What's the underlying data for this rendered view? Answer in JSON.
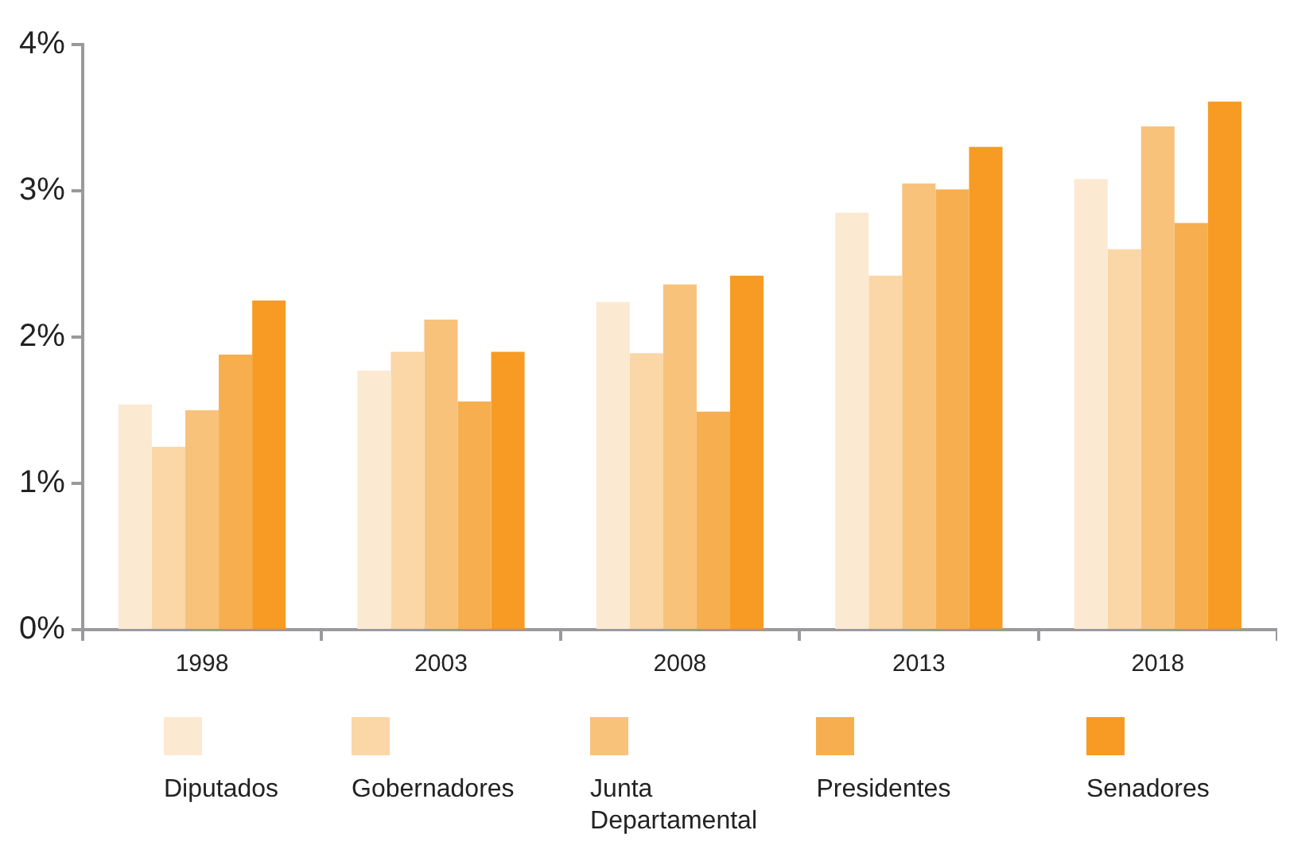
{
  "chart_data": {
    "type": "bar",
    "categories": [
      "1998",
      "2003",
      "2008",
      "2013",
      "2018"
    ],
    "series": [
      {
        "name": "Diputados",
        "color": "#fce9d2",
        "values": [
          1.54,
          1.77,
          2.24,
          2.85,
          3.08
        ]
      },
      {
        "name": "Gobernadores",
        "color": "#fbd6a6",
        "values": [
          1.25,
          1.9,
          1.89,
          2.42,
          2.6
        ]
      },
      {
        "name": "Junta Departamental",
        "color": "#f8c27b",
        "values": [
          1.5,
          2.12,
          2.36,
          3.05,
          3.44
        ]
      },
      {
        "name": "Presidentes",
        "color": "#f7ae4f",
        "values": [
          1.88,
          1.56,
          1.49,
          3.01,
          2.78
        ]
      },
      {
        "name": "Senadores",
        "color": "#f79b24",
        "values": [
          2.25,
          1.9,
          2.42,
          3.3,
          3.61
        ]
      }
    ],
    "ylim": [
      0,
      4
    ],
    "yticks": [
      {
        "value": 0,
        "label": "0%"
      },
      {
        "value": 1,
        "label": "1%"
      },
      {
        "value": 2,
        "label": "2%"
      },
      {
        "value": 3,
        "label": "3%"
      },
      {
        "value": 4,
        "label": "4%"
      }
    ],
    "grid": false,
    "legend": "bottom"
  }
}
